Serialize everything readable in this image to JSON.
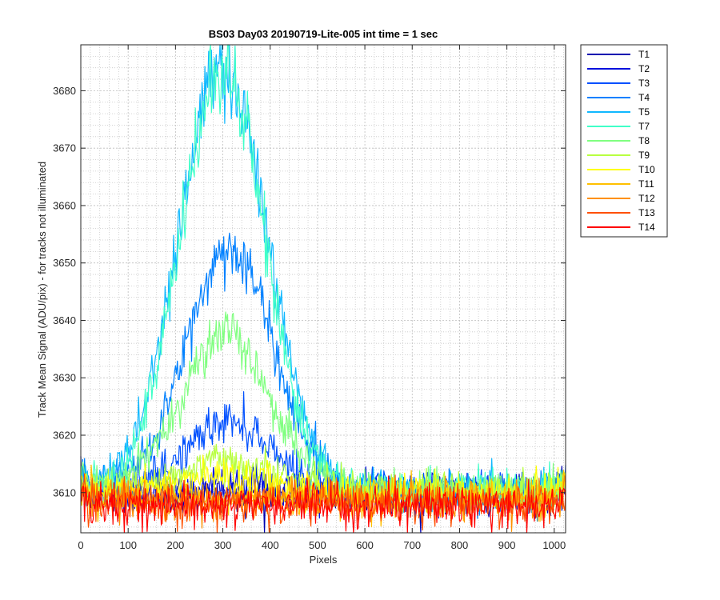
{
  "chart_data": {
    "type": "line",
    "title": "BS03 Day03 20190719-Lite-005 int time = 1 sec",
    "xlabel": "Pixels",
    "ylabel": "Track Mean Signal (ADU/pix) - for tracks not illuminated",
    "xlim": [
      0,
      1024
    ],
    "ylim": [
      3603,
      3688
    ],
    "xticks": [
      0,
      100,
      200,
      300,
      400,
      500,
      600,
      700,
      800,
      900,
      1000
    ],
    "yticks": [
      3610,
      3620,
      3630,
      3640,
      3650,
      3660,
      3670,
      3680
    ],
    "grid": true,
    "minor_grid": true,
    "legend_position": "outside-top-right",
    "series": [
      {
        "name": "T1",
        "color": "#0000b0",
        "baseline": 3609.5,
        "peak": 0,
        "peak_x": 310,
        "width": 100,
        "noise": 1.6
      },
      {
        "name": "T2",
        "color": "#0010dd",
        "baseline": 3610.0,
        "peak": 1.5,
        "peak_x": 310,
        "width": 100,
        "noise": 1.6
      },
      {
        "name": "T3",
        "color": "#0050ff",
        "baseline": 3610.5,
        "peak": 12,
        "peak_x": 315,
        "width": 95,
        "noise": 1.6
      },
      {
        "name": "T4",
        "color": "#0080ff",
        "baseline": 3610.5,
        "peak": 42,
        "peak_x": 315,
        "width": 98,
        "noise": 1.6
      },
      {
        "name": "T5",
        "color": "#10b8ff",
        "baseline": 3610.5,
        "peak": 74,
        "peak_x": 300,
        "width": 100,
        "noise": 1.7
      },
      {
        "name": "T7",
        "color": "#40ffc8",
        "baseline": 3610.5,
        "peak": 73,
        "peak_x": 300,
        "width": 95,
        "noise": 1.7
      },
      {
        "name": "T8",
        "color": "#80ff80",
        "baseline": 3610.5,
        "peak": 27,
        "peak_x": 305,
        "width": 100,
        "noise": 1.6
      },
      {
        "name": "T9",
        "color": "#b8ff40",
        "baseline": 3610.5,
        "peak": 5,
        "peak_x": 310,
        "width": 100,
        "noise": 1.6
      },
      {
        "name": "T10",
        "color": "#ffff00",
        "baseline": 3610.0,
        "peak": 3,
        "peak_x": 310,
        "width": 100,
        "noise": 1.6
      },
      {
        "name": "T11",
        "color": "#ffc000",
        "baseline": 3609.0,
        "peak": 0,
        "peak_x": 310,
        "width": 100,
        "noise": 1.6
      },
      {
        "name": "T12",
        "color": "#ff9000",
        "baseline": 3608.5,
        "peak": 0,
        "peak_x": 310,
        "width": 100,
        "noise": 1.7
      },
      {
        "name": "T13",
        "color": "#ff5000",
        "baseline": 3608.0,
        "peak": 0,
        "peak_x": 310,
        "width": 100,
        "noise": 1.7
      },
      {
        "name": "T14",
        "color": "#ff0000",
        "baseline": 3607.8,
        "peak": 0,
        "peak_x": 310,
        "width": 100,
        "noise": 1.7
      }
    ]
  }
}
